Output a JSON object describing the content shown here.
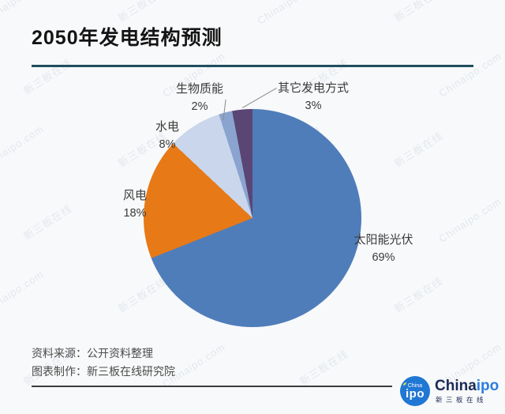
{
  "title": "2050年发电结构预测",
  "chart_data": {
    "type": "pie",
    "title": "2050年发电结构预测",
    "start_angle_deg": 0,
    "direction": "clockwise",
    "legend_position": "none",
    "labels_outside": true,
    "slices": [
      {
        "label": "太阳能光伏",
        "value": 69,
        "pct": "69%",
        "color": "#4f7dba"
      },
      {
        "label": "风电",
        "value": 18,
        "pct": "18%",
        "color": "#e77917"
      },
      {
        "label": "水电",
        "value": 8,
        "pct": "8%",
        "color": "#c9d6ec"
      },
      {
        "label": "生物质能",
        "value": 2,
        "pct": "2%",
        "color": "#8aa4cf"
      },
      {
        "label": "其它发电方式",
        "value": 3,
        "pct": "3%",
        "color": "#5a4575"
      }
    ]
  },
  "footer": {
    "source_line": "资料来源：公开资料整理",
    "maker_line": "图表制作：新三板在线研究院"
  },
  "logo": {
    "badge_top": "China",
    "badge_main": "ipo",
    "brand_china": "China",
    "brand_ipo": "ipo",
    "subtitle": "新三板在线"
  },
  "watermark": {
    "texts": [
      "Chinaipo.com",
      "新三板在线"
    ]
  },
  "colors": {
    "background": "#f8f9fa",
    "title_rule": "#1e4e60",
    "footer_rule": "#3c3c3c",
    "label_text": "#3a3a3a",
    "logo_blue": "#2077d4",
    "brand_navy": "#1b2b55",
    "brand_blue": "#2b7de0"
  }
}
